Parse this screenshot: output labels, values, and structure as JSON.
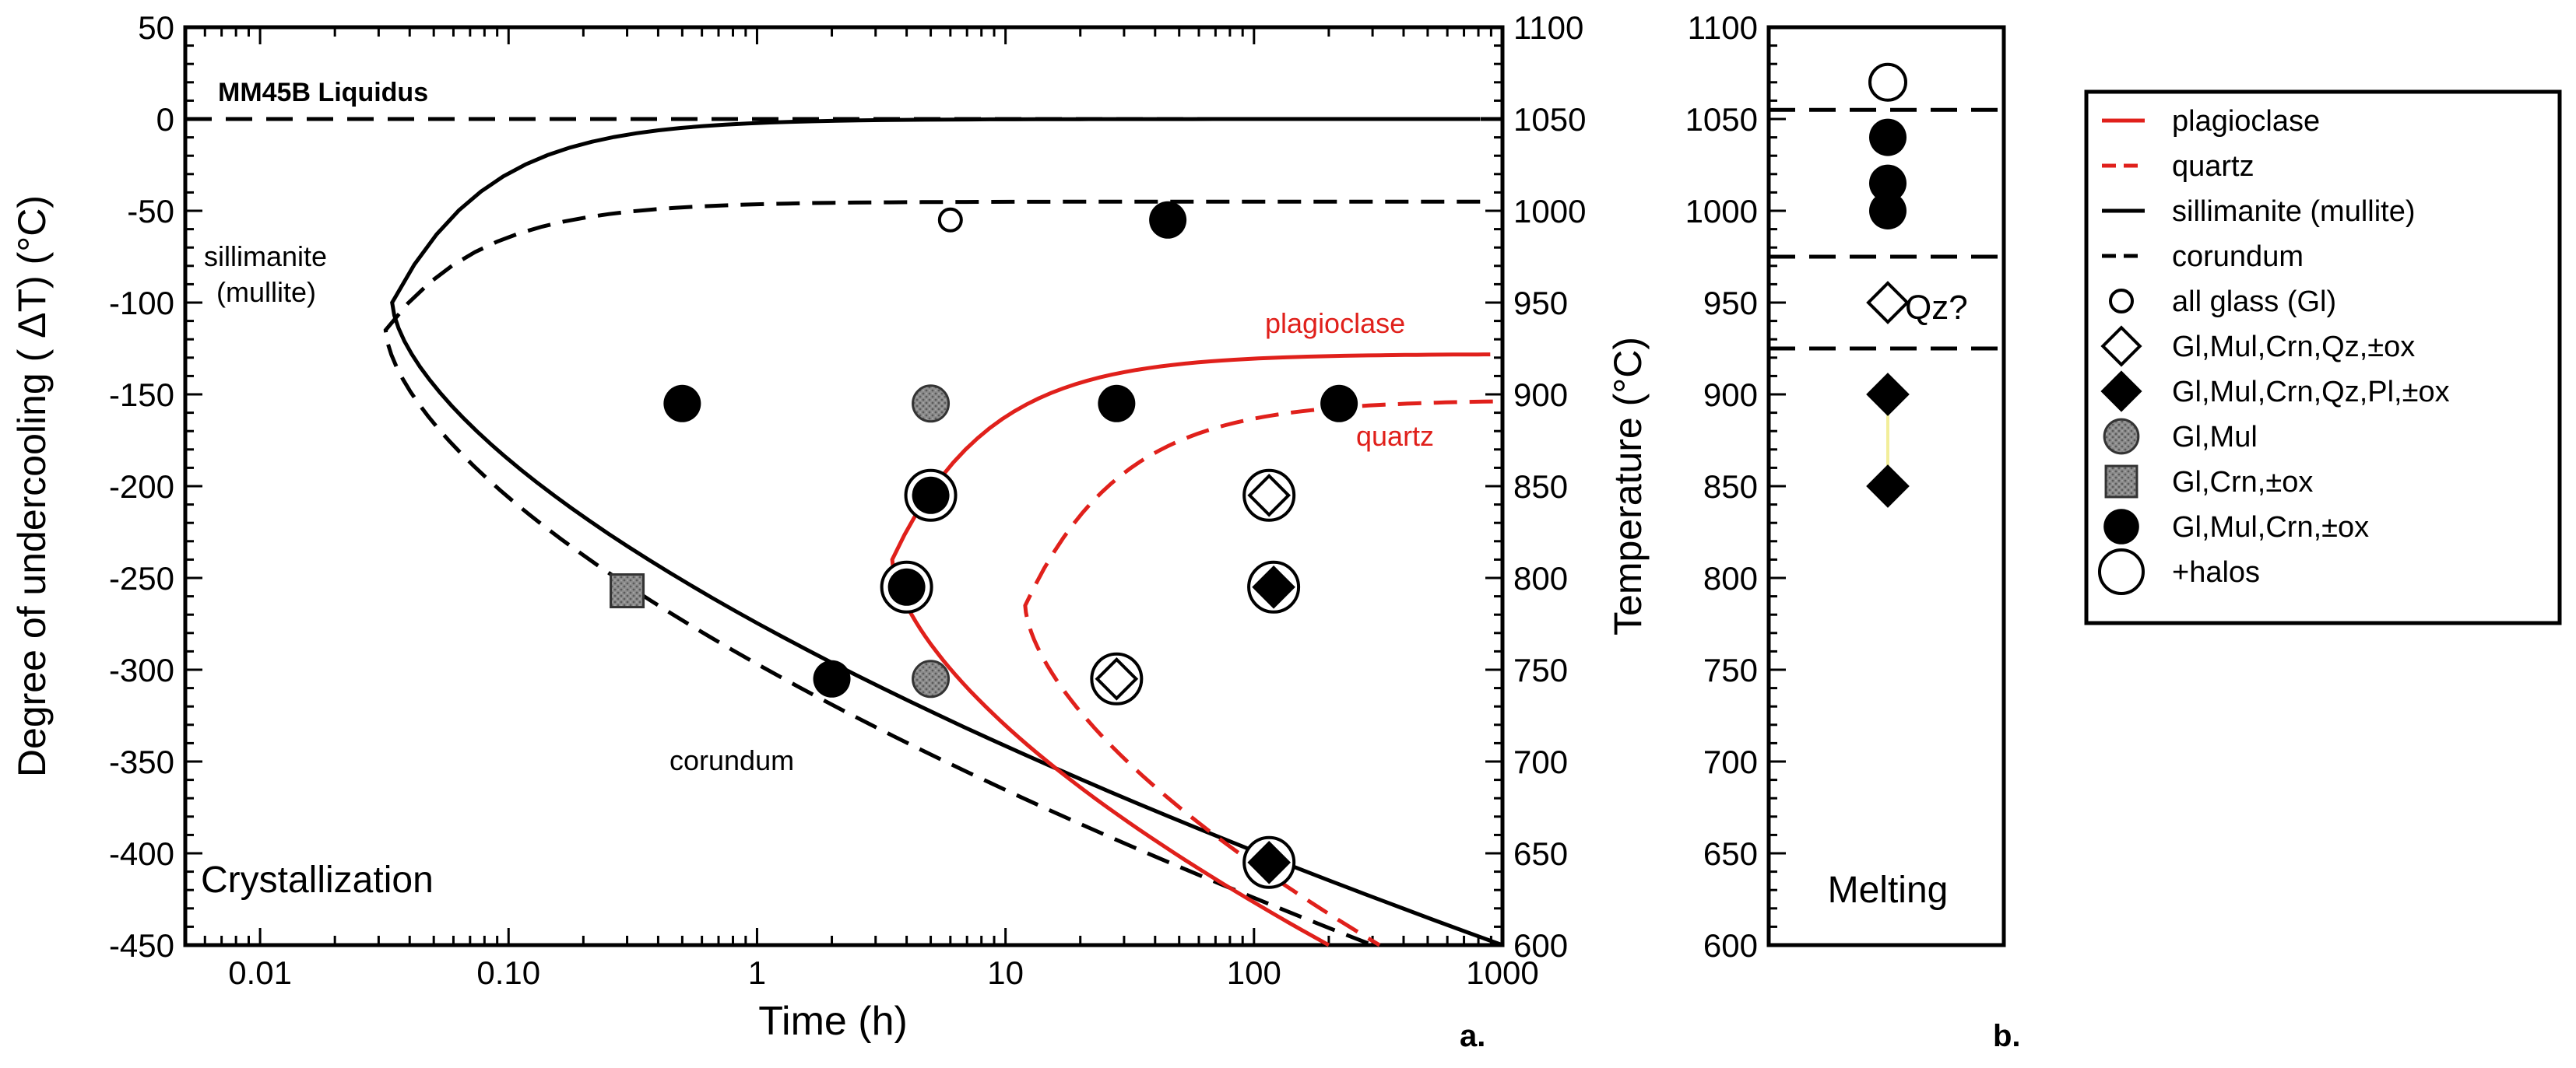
{
  "chart_data": [
    {
      "panel": "a.",
      "type": "scatter",
      "x_scale": "log",
      "xlabel": "Time (h)",
      "ylabel": "Degree of undercooling ( ΔT) (°C)",
      "y2label": "",
      "xlim": [
        0.005,
        1000
      ],
      "ylim": [
        -450,
        50
      ],
      "y2lim": [
        600,
        1100
      ],
      "x_ticks": [
        0.01,
        0.1,
        1,
        10,
        100,
        1000
      ],
      "x_tick_labels": [
        "0.01",
        "0.10",
        "1",
        "10",
        "100",
        "1000"
      ],
      "y_ticks": [
        50,
        0,
        -50,
        -100,
        -150,
        -200,
        -250,
        -300,
        -350,
        -400,
        -450
      ],
      "y2_ticks": [
        1100,
        1050,
        1000,
        950,
        900,
        850,
        800,
        750,
        700,
        650,
        600
      ],
      "annotations": {
        "liquidus": "MM45B Liquidus",
        "sillimanite_line1": "sillimanite",
        "sillimanite_line2": "(mullite)",
        "corundum": "corundum",
        "plagioclase": "plagioclase",
        "quartz": "quartz",
        "mode": "Crystallization",
        "panel_label": "a."
      },
      "reference_lines": [
        {
          "name": "liquidus",
          "y": 0,
          "style": "dashed"
        }
      ],
      "series": [
        {
          "name": "sillimanite (mullite)",
          "color": "#000000",
          "style": "solid",
          "nose": [
            0.034,
            -100
          ],
          "upper_asymptote": 0,
          "lower_end": [
            1000,
            -450
          ]
        },
        {
          "name": "corundum",
          "color": "#000000",
          "style": "dashed",
          "nose": [
            0.032,
            -115
          ],
          "upper_asymptote": -45,
          "lower_end": [
            300,
            -450
          ]
        },
        {
          "name": "plagioclase",
          "color": "#e0201b",
          "style": "solid",
          "nose": [
            3.5,
            -240
          ],
          "upper_asymptote": -128,
          "lower_end": [
            200,
            -450
          ]
        },
        {
          "name": "quartz",
          "color": "#e0201b",
          "style": "dashed",
          "nose": [
            12,
            -265
          ],
          "upper_asymptote": -153,
          "lower_end": [
            320,
            -450
          ]
        }
      ],
      "points": [
        {
          "x": 6,
          "y": -55,
          "type": "all_glass_small",
          "halo": false
        },
        {
          "x": 45,
          "y": -55,
          "type": "gl_mul_crn",
          "halo": false
        },
        {
          "x": 0.5,
          "y": -155,
          "type": "gl_mul_crn",
          "halo": false
        },
        {
          "x": 5,
          "y": -155,
          "type": "gl_mul",
          "halo": false
        },
        {
          "x": 28,
          "y": -155,
          "type": "gl_mul_crn",
          "halo": false
        },
        {
          "x": 220,
          "y": -155,
          "type": "gl_mul_crn",
          "halo": false
        },
        {
          "x": 5,
          "y": -205,
          "type": "gl_mul_crn",
          "halo": true
        },
        {
          "x": 115,
          "y": -205,
          "type": "gl_mul_crn_qz",
          "halo": true
        },
        {
          "x": 0.3,
          "y": -257,
          "type": "gl_crn",
          "halo": false
        },
        {
          "x": 4,
          "y": -255,
          "type": "gl_mul_crn",
          "halo": true
        },
        {
          "x": 120,
          "y": -255,
          "type": "gl_mul_crn_qz_pl",
          "halo": true
        },
        {
          "x": 2,
          "y": -305,
          "type": "gl_mul_crn",
          "halo": false
        },
        {
          "x": 5,
          "y": -305,
          "type": "gl_mul",
          "halo": false
        },
        {
          "x": 28,
          "y": -305,
          "type": "gl_mul_crn_qz",
          "halo": true
        },
        {
          "x": 115,
          "y": -405,
          "type": "gl_mul_crn_qz_pl",
          "halo": true
        }
      ]
    },
    {
      "panel": "b.",
      "type": "scatter",
      "ylabel": "Temperature (°C)",
      "ylim": [
        600,
        1100
      ],
      "y_ticks": [
        1100,
        1050,
        1000,
        950,
        900,
        850,
        800,
        750,
        700,
        650,
        600
      ],
      "annotations": {
        "mode": "Melting",
        "panel_label": "b.",
        "qz_note": "Qz?"
      },
      "reference_lines": [
        {
          "y": 1055,
          "style": "dashed"
        },
        {
          "y": 975,
          "style": "dashed"
        },
        {
          "y": 925,
          "style": "dashed"
        }
      ],
      "points": [
        {
          "y": 1070,
          "type": "halo_only"
        },
        {
          "y": 1040,
          "type": "gl_mul_crn"
        },
        {
          "y": 1015,
          "type": "gl_mul_crn"
        },
        {
          "y": 1000,
          "type": "gl_mul_crn"
        },
        {
          "y": 950,
          "type": "gl_mul_crn_qz"
        },
        {
          "y": 900,
          "type": "gl_mul_crn_qz_pl"
        },
        {
          "y": 850,
          "type": "gl_mul_crn_qz_pl"
        }
      ],
      "link_line": {
        "from": 900,
        "to": 850,
        "color": "#f2ee9a"
      }
    }
  ],
  "legend": {
    "placement": "right",
    "entries": [
      {
        "key": "plagioclase",
        "label": "plagioclase",
        "symbol": "line-solid-red"
      },
      {
        "key": "quartz",
        "label": "quartz",
        "symbol": "line-dashed-red"
      },
      {
        "key": "sillimanite",
        "label": "sillimanite (mullite)",
        "symbol": "line-solid-black"
      },
      {
        "key": "corundum",
        "label": "corundum",
        "symbol": "line-dashed-black"
      },
      {
        "key": "all_glass",
        "label": "all glass (Gl)",
        "symbol": "circle-open-small"
      },
      {
        "key": "gl_mul_crn_qz",
        "label": "Gl,Mul,Crn,Qz,±ox",
        "symbol": "diamond-open"
      },
      {
        "key": "gl_mul_crn_qz_pl",
        "label": "Gl,Mul,Crn,Qz,Pl,±ox",
        "symbol": "diamond-filled"
      },
      {
        "key": "gl_mul",
        "label": "Gl,Mul",
        "symbol": "circle-gray"
      },
      {
        "key": "gl_crn",
        "label": "Gl,Crn,±ox",
        "symbol": "square-gray"
      },
      {
        "key": "gl_mul_crn",
        "label": "Gl,Mul,Crn,±ox",
        "symbol": "circle-filled"
      },
      {
        "key": "halos",
        "label": "+halos",
        "symbol": "circle-open-large"
      }
    ]
  },
  "colors": {
    "red": "#e0201b",
    "gray_fill": "#8c8c8c",
    "halo_link": "#f2ee9a"
  }
}
